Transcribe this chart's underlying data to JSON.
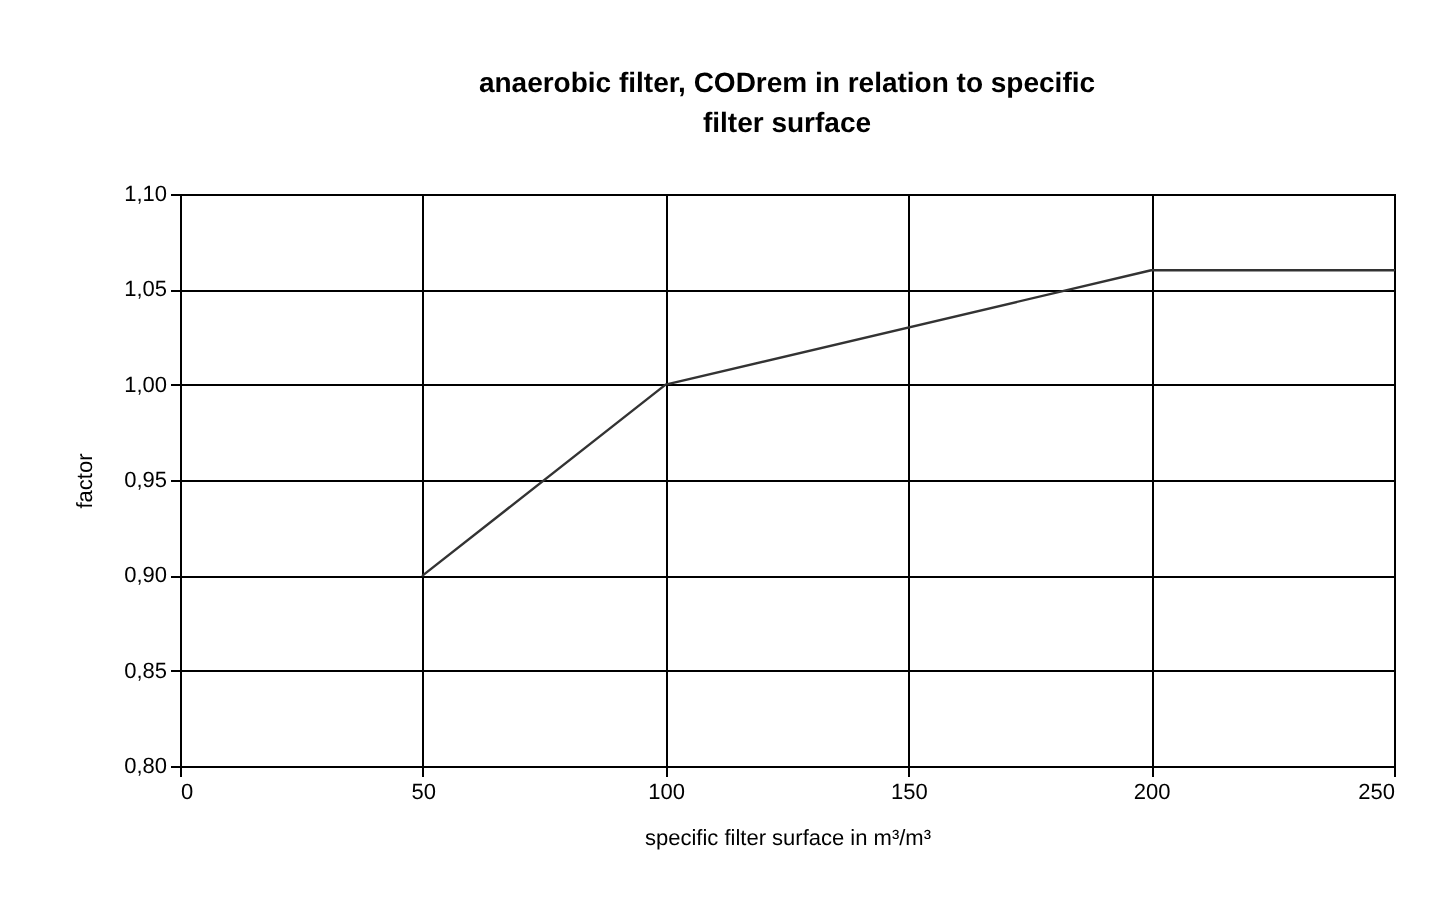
{
  "chart_data": {
    "type": "line",
    "title": "anaerobic filter, CODrem in relation to specific filter surface",
    "xlabel": "specific filter surface in m³/m³",
    "ylabel": "factor",
    "x": [
      50,
      100,
      200,
      250
    ],
    "series": [
      {
        "color": "#333333",
        "values": [
          0.9,
          1.0,
          1.06,
          1.06
        ]
      }
    ],
    "xlim": [
      0,
      250
    ],
    "xticks": [
      0,
      50,
      100,
      150,
      200,
      250
    ],
    "ylim": [
      0.8,
      1.1
    ],
    "yticks": [
      {
        "value": 0.8,
        "label": "0,80"
      },
      {
        "value": 0.85,
        "label": "0,85"
      },
      {
        "value": 0.9,
        "label": "0,90"
      },
      {
        "value": 0.95,
        "label": "0,95"
      },
      {
        "value": 1.0,
        "label": "1,00"
      },
      {
        "value": 1.05,
        "label": "1,05"
      },
      {
        "value": 1.1,
        "label": "1,10"
      }
    ],
    "grid": true,
    "marker": "none",
    "line_style": "solid"
  }
}
